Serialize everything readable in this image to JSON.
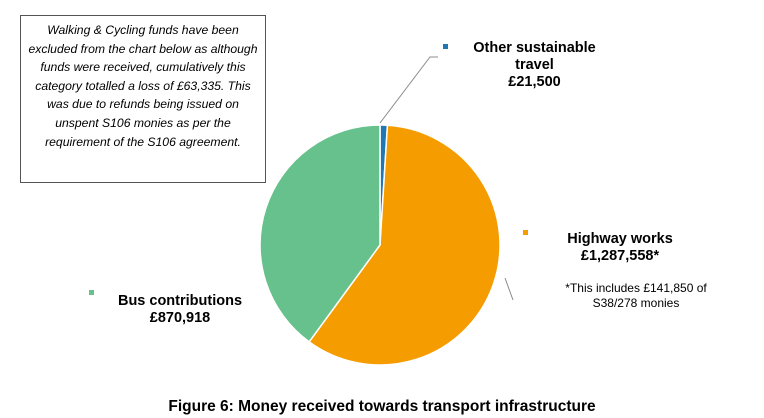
{
  "note": "Walking & Cycling funds have been excluded from the chart below as although funds were received, cumulatively this category totalled a loss of £63,335. This was due to refunds being issued on unspent S106 monies as per the requirement of the S106 agreement.",
  "caption": "Figure 6: Money received towards transport infrastructure",
  "chart_data": {
    "type": "pie",
    "title": "Figure 6: Money received towards transport infrastructure",
    "slices": [
      {
        "name": "Other sustainable travel",
        "value": 21500,
        "value_label": "£21,500",
        "color": "#1f77b4"
      },
      {
        "name": "Highway works",
        "value": 1287558,
        "value_label": "£1,287,558*",
        "color": "#f59c00",
        "footnote": "*This includes £141,850 of S38/278 monies"
      },
      {
        "name": "Bus contributions",
        "value": 870918,
        "value_label": "£870,918",
        "color": "#66c18c"
      }
    ]
  }
}
